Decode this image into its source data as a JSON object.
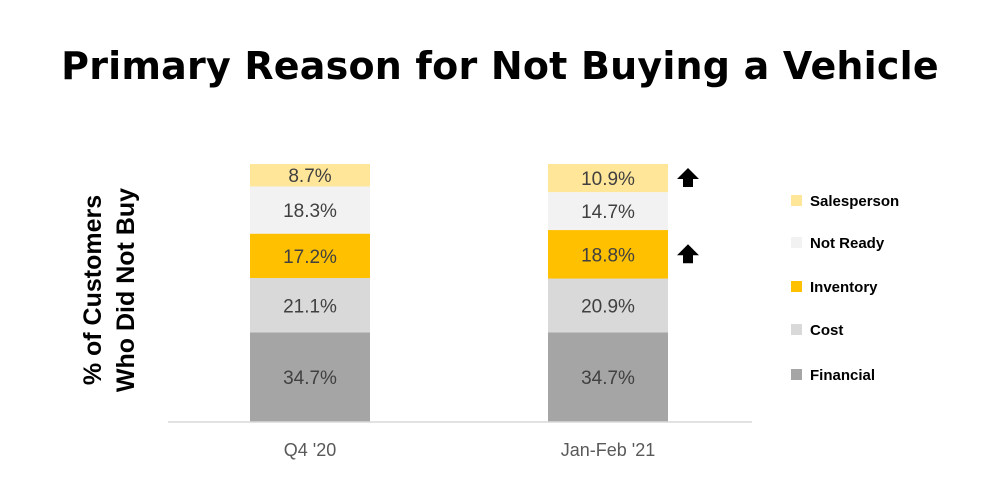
{
  "title": "Primary Reason for Not Buying a Vehicle",
  "chart_data": {
    "type": "bar",
    "stacked": true,
    "ylabel_lines": [
      "% of Customers",
      "Who Did Not Buy"
    ],
    "categories": [
      "Q4 '20",
      "Jan-Feb '21"
    ],
    "series": [
      {
        "name": "Financial",
        "color": "#A5A5A5",
        "values": [
          34.7,
          34.7
        ],
        "labels": [
          "34.7%",
          "34.7%"
        ]
      },
      {
        "name": "Cost",
        "color": "#D9D9D9",
        "values": [
          21.1,
          20.9
        ],
        "labels": [
          "21.1%",
          "20.9%"
        ]
      },
      {
        "name": "Inventory",
        "color": "#FFC000",
        "values": [
          17.2,
          18.8
        ],
        "labels": [
          "17.2%",
          "18.8%"
        ]
      },
      {
        "name": "Not Ready",
        "color": "#F2F2F2",
        "values": [
          18.3,
          14.7
        ],
        "labels": [
          "18.3%",
          "14.7%"
        ]
      },
      {
        "name": "Salesperson",
        "color": "#FFE699",
        "values": [
          8.7,
          10.9
        ],
        "labels": [
          "8.7%",
          "10.9%"
        ]
      }
    ],
    "legend_order": [
      "Salesperson",
      "Not Ready",
      "Inventory",
      "Cost",
      "Financial"
    ],
    "legend_position": "right",
    "annotations": [
      {
        "type": "up-arrow",
        "category": "Jan-Feb '21",
        "series": "Salesperson"
      },
      {
        "type": "up-arrow",
        "category": "Jan-Feb '21",
        "series": "Inventory"
      }
    ],
    "ylim": [
      0,
      100
    ],
    "grid": false
  }
}
